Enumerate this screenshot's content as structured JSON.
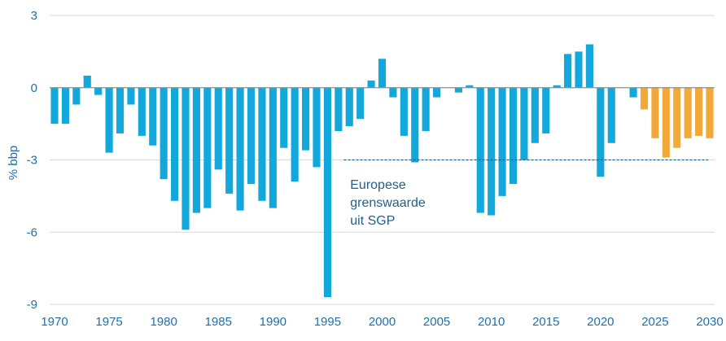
{
  "chart_data": {
    "type": "bar",
    "ylabel": "% bbp",
    "ylim": [
      -9,
      3
    ],
    "yticks": [
      3,
      0,
      -3,
      -6,
      -9
    ],
    "ytick_labels": [
      "3",
      "0",
      "-3",
      "-6",
      "-9"
    ],
    "xlim": [
      1970,
      2030
    ],
    "xticks": [
      1970,
      1975,
      1980,
      1985,
      1990,
      1995,
      2000,
      2005,
      2010,
      2015,
      2020,
      2025,
      2030
    ],
    "xtick_labels": [
      "1970",
      "1975",
      "1980",
      "1985",
      "1990",
      "1995",
      "2000",
      "2005",
      "2010",
      "2015",
      "2020",
      "2025",
      "2030"
    ],
    "grid": "horizontal",
    "colors": {
      "historical": "#12a8dc",
      "forecast": "#f2a938",
      "reference": "#1f5f8b"
    },
    "series": [
      {
        "type": "historical",
        "x": [
          1970,
          1971,
          1972,
          1973,
          1974,
          1975,
          1976,
          1977,
          1978,
          1979,
          1980,
          1981,
          1982,
          1983,
          1984,
          1985,
          1986,
          1987,
          1988,
          1989,
          1990,
          1991,
          1992,
          1993,
          1994,
          1995,
          1996,
          1997,
          1998,
          1999,
          2000,
          2001,
          2002,
          2003,
          2004,
          2005,
          2006,
          2007,
          2008,
          2009,
          2010,
          2011,
          2012,
          2013,
          2014,
          2015,
          2016,
          2017,
          2018,
          2019,
          2020,
          2021,
          2022,
          2023
        ],
        "values": [
          -1.5,
          -1.5,
          -0.7,
          0.5,
          -0.3,
          -2.7,
          -1.9,
          -0.7,
          -2.0,
          -2.4,
          -3.8,
          -4.7,
          -5.9,
          -5.2,
          -5.0,
          -3.4,
          -4.4,
          -5.1,
          -4.0,
          -4.7,
          -5.0,
          -2.5,
          -3.9,
          -2.6,
          -3.3,
          -8.7,
          -1.8,
          -1.6,
          -1.3,
          0.3,
          1.2,
          -0.4,
          -2.0,
          -3.1,
          -1.8,
          -0.4,
          0.0,
          -0.2,
          0.1,
          -5.2,
          -5.3,
          -4.5,
          -4.0,
          -3.0,
          -2.3,
          -1.9,
          0.1,
          1.4,
          1.5,
          1.8,
          -3.7,
          -2.3,
          0.0,
          -0.4
        ]
      },
      {
        "type": "forecast",
        "x": [
          2024,
          2025,
          2026,
          2027,
          2028,
          2029,
          2030
        ],
        "values": [
          -0.9,
          -2.1,
          -2.9,
          -2.5,
          -2.1,
          -2.0,
          -2.1
        ]
      }
    ],
    "reference_line": {
      "value": -3,
      "x_range": [
        1997,
        2030
      ],
      "style": "dashed",
      "label": [
        "Europese",
        "grenswaarde",
        "uit SGP"
      ]
    }
  }
}
